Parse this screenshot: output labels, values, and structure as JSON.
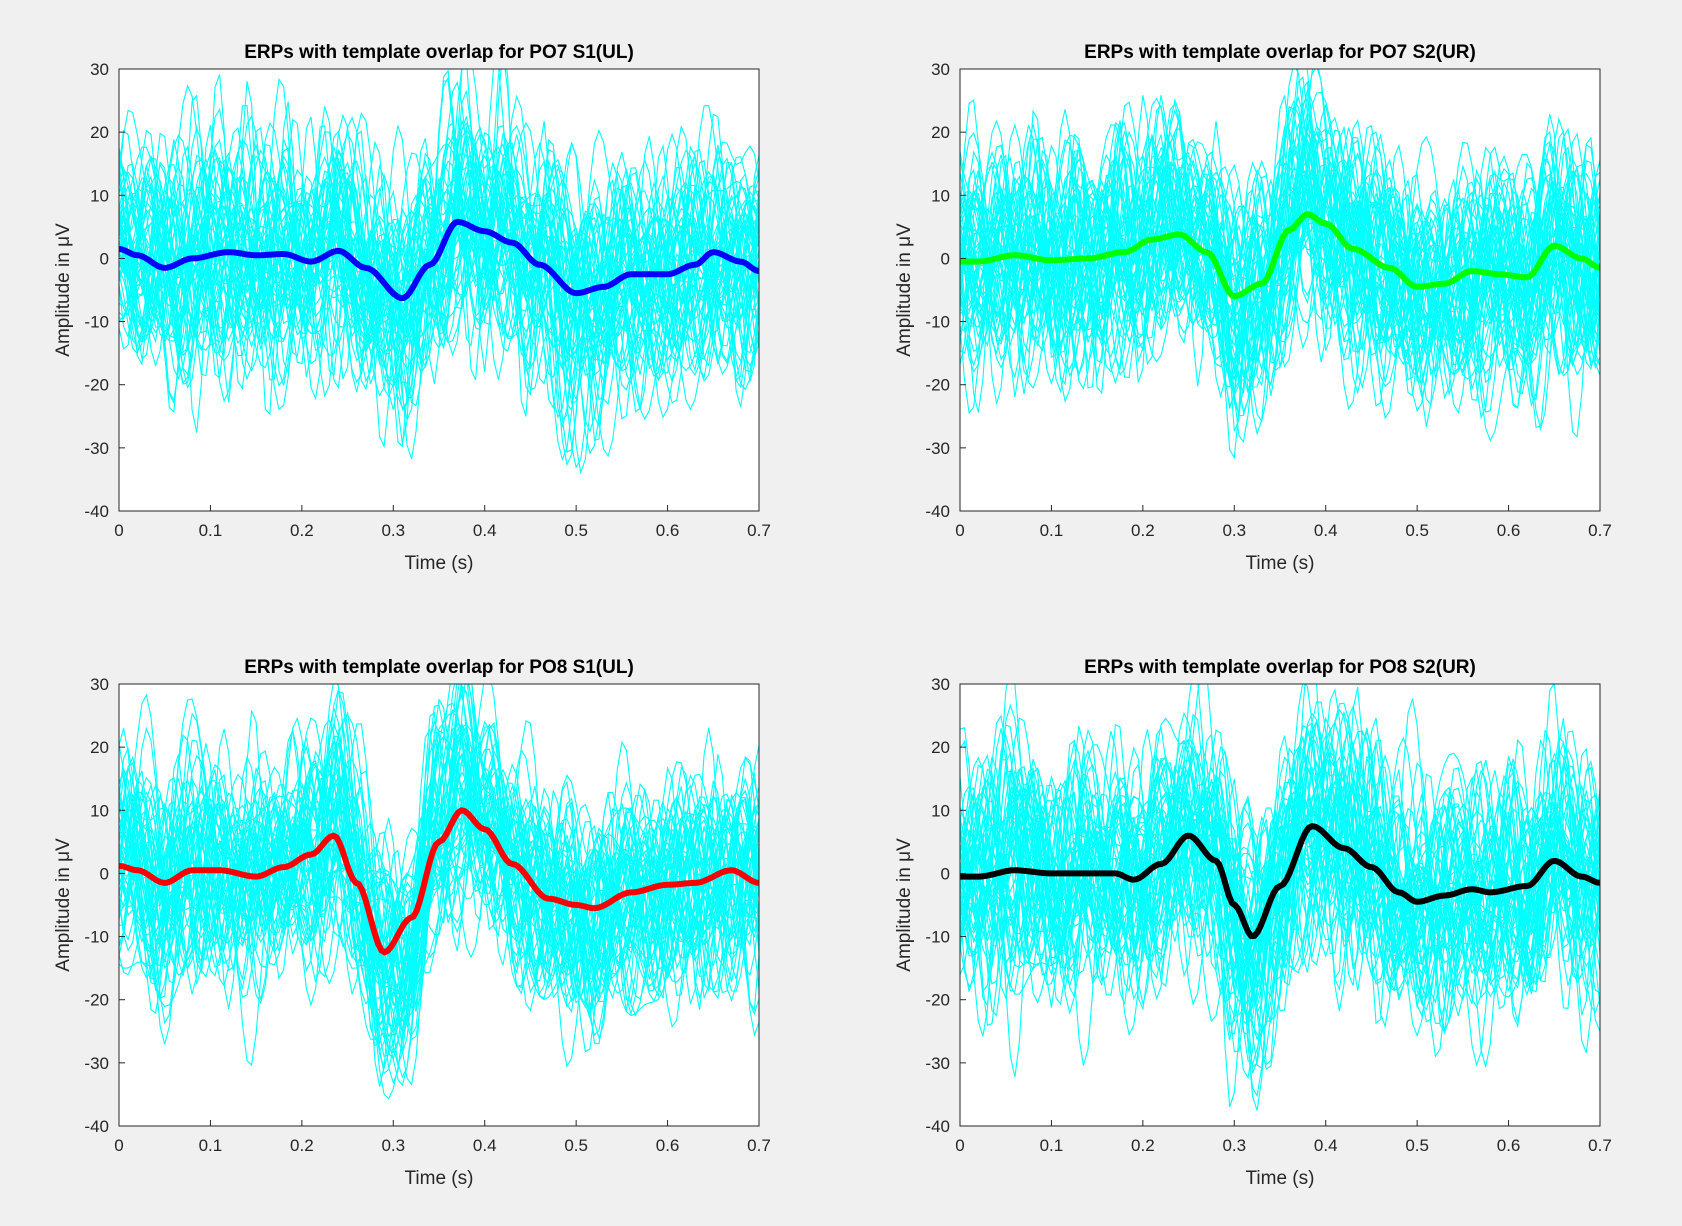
{
  "figure": {
    "background": "#f0f0f0",
    "trial_color": "#00ffff",
    "trials_per_panel": 56
  },
  "chart_data": [
    {
      "type": "line",
      "title": "ERPs with template overlap for PO7 S1(UL)",
      "xlabel": "Time (s)",
      "ylabel": "Amplitude in μV",
      "xlim": [
        0,
        0.7
      ],
      "ylim": [
        -40,
        30
      ],
      "xticks": [
        0,
        0.1,
        0.2,
        0.3,
        0.4,
        0.5,
        0.6,
        0.7
      ],
      "xtick_labels": [
        "0",
        "0.1",
        "0.2",
        "0.3",
        "0.4",
        "0.5",
        "0.6",
        "0.7"
      ],
      "yticks": [
        -40,
        -30,
        -20,
        -10,
        0,
        10,
        20,
        30
      ],
      "ytick_labels": [
        "-40",
        "-30",
        "-20",
        "-10",
        "0",
        "10",
        "20",
        "30"
      ],
      "grid": false,
      "legend": "none",
      "trial_color": "#00ffff",
      "template_color": "#0000ff",
      "template": {
        "x": [
          0,
          0.02,
          0.05,
          0.08,
          0.12,
          0.15,
          0.18,
          0.21,
          0.24,
          0.27,
          0.31,
          0.34,
          0.37,
          0.4,
          0.43,
          0.46,
          0.5,
          0.53,
          0.56,
          0.6,
          0.63,
          0.65,
          0.68,
          0.7
        ],
        "y": [
          1.5,
          0.5,
          -1.5,
          0,
          1,
          0.5,
          0.7,
          -0.5,
          1.2,
          -1.5,
          -6.3,
          -1,
          5.8,
          4.3,
          2.5,
          -1,
          -5.5,
          -4.5,
          -2.5,
          -2.5,
          -1,
          1,
          -0.5,
          -2
        ]
      }
    },
    {
      "type": "line",
      "title": "ERPs with template overlap for PO7 S2(UR)",
      "xlabel": "Time (s)",
      "ylabel": "Amplitude in μV",
      "xlim": [
        0,
        0.7
      ],
      "ylim": [
        -40,
        30
      ],
      "xticks": [
        0,
        0.1,
        0.2,
        0.3,
        0.4,
        0.5,
        0.6,
        0.7
      ],
      "xtick_labels": [
        "0",
        "0.1",
        "0.2",
        "0.3",
        "0.4",
        "0.5",
        "0.6",
        "0.7"
      ],
      "yticks": [
        -40,
        -30,
        -20,
        -10,
        0,
        10,
        20,
        30
      ],
      "ytick_labels": [
        "-40",
        "-30",
        "-20",
        "-10",
        "0",
        "10",
        "20",
        "30"
      ],
      "grid": false,
      "legend": "none",
      "trial_color": "#00ffff",
      "template_color": "#00ff00",
      "template": {
        "x": [
          0,
          0.02,
          0.06,
          0.1,
          0.14,
          0.18,
          0.21,
          0.24,
          0.27,
          0.3,
          0.33,
          0.36,
          0.38,
          0.4,
          0.43,
          0.47,
          0.5,
          0.53,
          0.56,
          0.59,
          0.62,
          0.65,
          0.68,
          0.7
        ],
        "y": [
          -0.5,
          -0.5,
          0.5,
          -0.3,
          0,
          1,
          3,
          3.8,
          1,
          -6,
          -4,
          4.5,
          7,
          5.5,
          1.5,
          -1.5,
          -4.5,
          -4,
          -2,
          -2.5,
          -3,
          2,
          0,
          -1.5
        ]
      }
    },
    {
      "type": "line",
      "title": "ERPs with template overlap for PO8 S1(UL)",
      "xlabel": "Time (s)",
      "ylabel": "Amplitude in μV",
      "xlim": [
        0,
        0.7
      ],
      "ylim": [
        -40,
        30
      ],
      "xticks": [
        0,
        0.1,
        0.2,
        0.3,
        0.4,
        0.5,
        0.6,
        0.7
      ],
      "xtick_labels": [
        "0",
        "0.1",
        "0.2",
        "0.3",
        "0.4",
        "0.5",
        "0.6",
        "0.7"
      ],
      "yticks": [
        -40,
        -30,
        -20,
        -10,
        0,
        10,
        20,
        30
      ],
      "ytick_labels": [
        "-40",
        "-30",
        "-20",
        "-10",
        "0",
        "10",
        "20",
        "30"
      ],
      "grid": false,
      "legend": "none",
      "trial_color": "#00ffff",
      "template_color": "#ff0000",
      "template": {
        "x": [
          0,
          0.02,
          0.05,
          0.08,
          0.11,
          0.15,
          0.18,
          0.21,
          0.235,
          0.26,
          0.29,
          0.32,
          0.35,
          0.375,
          0.4,
          0.43,
          0.47,
          0.5,
          0.52,
          0.56,
          0.6,
          0.63,
          0.67,
          0.7
        ],
        "y": [
          1.2,
          0.5,
          -1.5,
          0.5,
          0.5,
          -0.5,
          1,
          3,
          6,
          -1.5,
          -12.5,
          -7,
          5,
          10,
          7,
          1.5,
          -4,
          -5,
          -5.5,
          -3,
          -1.8,
          -1.5,
          0.5,
          -1.5
        ]
      }
    },
    {
      "type": "line",
      "title": "ERPs with template overlap for PO8 S2(UR)",
      "xlabel": "Time (s)",
      "ylabel": "Amplitude in μV",
      "xlim": [
        0,
        0.7
      ],
      "ylim": [
        -40,
        30
      ],
      "xticks": [
        0,
        0.1,
        0.2,
        0.3,
        0.4,
        0.5,
        0.6,
        0.7
      ],
      "xtick_labels": [
        "0",
        "0.1",
        "0.2",
        "0.3",
        "0.4",
        "0.5",
        "0.6",
        "0.7"
      ],
      "yticks": [
        -40,
        -30,
        -20,
        -10,
        0,
        10,
        20,
        30
      ],
      "ytick_labels": [
        "-40",
        "-30",
        "-20",
        "-10",
        "0",
        "10",
        "20",
        "30"
      ],
      "grid": false,
      "legend": "none",
      "trial_color": "#00ffff",
      "template_color": "#000000",
      "template": {
        "x": [
          0,
          0.02,
          0.06,
          0.1,
          0.14,
          0.17,
          0.19,
          0.22,
          0.25,
          0.28,
          0.3,
          0.32,
          0.35,
          0.385,
          0.42,
          0.45,
          0.48,
          0.5,
          0.53,
          0.56,
          0.58,
          0.62,
          0.65,
          0.68,
          0.7
        ],
        "y": [
          -0.5,
          -0.5,
          0.5,
          0,
          0,
          0,
          -1,
          1.5,
          6,
          2,
          -5,
          -10,
          -2,
          7.5,
          4,
          1,
          -3,
          -4.5,
          -3.5,
          -2.5,
          -3,
          -2,
          2,
          -0.5,
          -1.5
        ]
      }
    }
  ]
}
